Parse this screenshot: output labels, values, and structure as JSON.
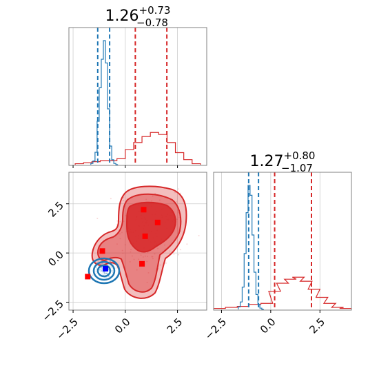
{
  "chart_data": [
    {
      "type": "histogram",
      "panel": "top-left marginal",
      "title": {
        "value": "1.26",
        "plus": "+0.73",
        "minus": "−0.78"
      },
      "xlim": [
        -2.7,
        3.9
      ],
      "grid": true,
      "series": [
        {
          "name": "",
          "color": "#1f77b4",
          "x": [
            -1.6,
            -1.5,
            -1.4,
            -1.3,
            -1.2,
            -1.1,
            -1.0,
            -0.9,
            -0.8,
            -0.7,
            -0.6,
            -0.5,
            -0.4
          ],
          "density": [
            0.01,
            0.03,
            0.1,
            0.35,
            0.62,
            0.85,
            1.0,
            0.82,
            0.45,
            0.15,
            0.04,
            0.01,
            0.0
          ],
          "quantile_lines": [
            -1.32,
            -0.75
          ]
        },
        {
          "name": "",
          "color": "#d62728",
          "x": [
            -2.2,
            -1.8,
            -1.4,
            -1.0,
            -0.6,
            -0.2,
            0.2,
            0.6,
            1.0,
            1.4,
            1.8,
            2.2,
            2.6,
            3.0,
            3.4
          ],
          "density": [
            0.01,
            0.02,
            0.03,
            0.04,
            0.04,
            0.06,
            0.15,
            0.22,
            0.28,
            0.32,
            0.3,
            0.22,
            0.12,
            0.05,
            0.01
          ],
          "quantile_lines": [
            0.48,
            1.99
          ]
        }
      ]
    },
    {
      "type": "histogram",
      "panel": "bottom-right marginal",
      "title": {
        "value": "1.27",
        "plus": "+0.80",
        "minus": "−1.07"
      },
      "xlim": [
        -2.9,
        4.1
      ],
      "xticks": [
        "−2.5",
        "0.0",
        "2.5"
      ],
      "grid": true,
      "series": [
        {
          "name": "",
          "color": "#1f77b4",
          "x": [
            -1.6,
            -1.5,
            -1.4,
            -1.3,
            -1.2,
            -1.1,
            -1.0,
            -0.9,
            -0.8,
            -0.7,
            -0.6,
            -0.5,
            -0.4
          ],
          "density": [
            0.02,
            0.06,
            0.18,
            0.45,
            0.78,
            1.0,
            0.92,
            0.6,
            0.3,
            0.12,
            0.04,
            0.01,
            0.0
          ],
          "quantile_lines": [
            -1.12,
            -0.62
          ]
        },
        {
          "name": "",
          "color": "#d62728",
          "x": [
            -2.6,
            -2.0,
            -1.4,
            -0.8,
            -0.2,
            0.2,
            0.6,
            1.0,
            1.4,
            1.8,
            2.2,
            2.6,
            3.0,
            3.4,
            3.8
          ],
          "density": [
            0.01,
            0.02,
            0.03,
            0.05,
            0.06,
            0.18,
            0.26,
            0.3,
            0.32,
            0.28,
            0.2,
            0.12,
            0.06,
            0.02,
            0.01
          ],
          "quantile_lines": [
            0.2,
            2.07
          ]
        }
      ]
    },
    {
      "type": "contour",
      "panel": "bottom-left joint",
      "xlim": [
        -2.7,
        3.9
      ],
      "ylim": [
        -2.9,
        4.1
      ],
      "xticks": [
        "−2.5",
        "0.0",
        "2.5"
      ],
      "yticks": [
        "−2.5",
        "0.0",
        "2.5"
      ],
      "grid": true,
      "series": [
        {
          "name": "",
          "color": "#d62728",
          "mean_x": 1.3,
          "mean_y": 1.2,
          "markers": [
            [
              0.88,
              2.2
            ],
            [
              1.55,
              1.55
            ],
            [
              0.95,
              0.85
            ],
            [
              0.8,
              -0.55
            ],
            [
              -1.1,
              0.1
            ],
            [
              -1.8,
              -1.2
            ]
          ]
        },
        {
          "name": "",
          "color": "#1f77b4",
          "mean_x": -0.95,
          "mean_y": -0.8,
          "markers": [
            [
              -0.95,
              -0.8
            ]
          ]
        }
      ]
    }
  ]
}
